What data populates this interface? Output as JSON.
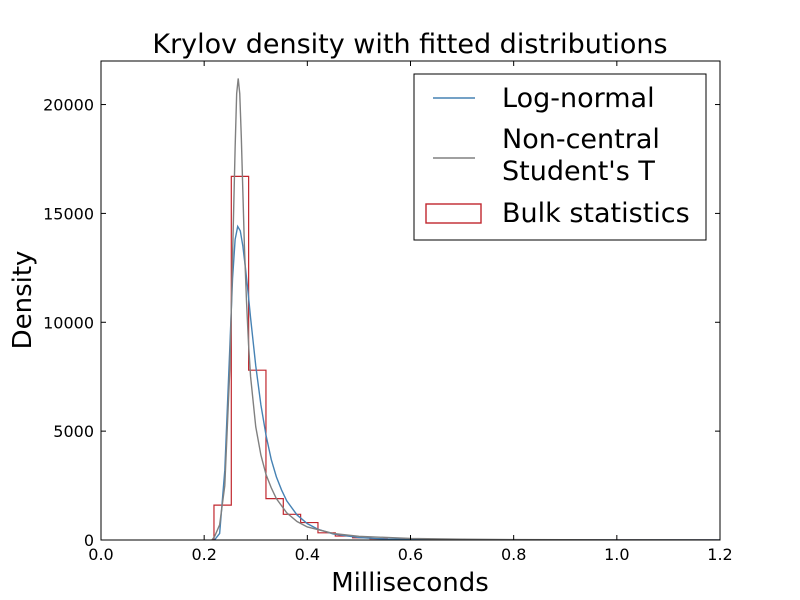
{
  "chart_data": {
    "type": "histogram",
    "title": "Krylov density with fitted distributions",
    "xlabel": "Milliseconds",
    "ylabel": "Density",
    "xlim": [
      0.0,
      1.2
    ],
    "ylim": [
      0,
      22000
    ],
    "x_ticks": [
      "0.0",
      "0.2",
      "0.4",
      "0.6",
      "0.8",
      "1.0",
      "1.2"
    ],
    "y_ticks": [
      "0",
      "5000",
      "10000",
      "15000",
      "20000"
    ],
    "grid": false,
    "legend_position": "top-right",
    "histogram": {
      "name": "Bulk statistics",
      "color": "#c0262d",
      "bin_edges": [
        0.219,
        0.2526,
        0.2862,
        0.3198,
        0.3534,
        0.387,
        0.4206,
        0.4542,
        0.4878,
        0.5214,
        0.555,
        0.5886,
        0.6222,
        0.6558,
        0.6894,
        0.723,
        0.7566,
        0.7902,
        0.8238,
        0.8574,
        0.891,
        0.9246,
        0.9582,
        0.9918,
        1.0254,
        1.059,
        1.0926,
        1.1262,
        1.1598,
        1.1934
      ],
      "densities": [
        1600,
        16700,
        7800,
        1900,
        1180,
        800,
        330,
        180,
        100,
        60,
        40,
        25,
        15,
        10,
        8,
        6,
        5,
        4,
        3,
        3,
        2,
        2,
        2,
        1,
        1,
        1,
        1,
        1,
        1
      ]
    },
    "series": [
      {
        "name": "Log-normal",
        "color": "#4682b4",
        "x": [
          0.22,
          0.23,
          0.24,
          0.25,
          0.255,
          0.26,
          0.265,
          0.27,
          0.275,
          0.28,
          0.285,
          0.29,
          0.3,
          0.31,
          0.32,
          0.33,
          0.34,
          0.35,
          0.36,
          0.38,
          0.4,
          0.42,
          0.45,
          0.5,
          0.55,
          0.6,
          0.7,
          0.8,
          1.0,
          1.2
        ],
        "y": [
          0,
          300,
          3200,
          9000,
          12000,
          13800,
          14400,
          14200,
          13500,
          12500,
          11400,
          10200,
          8000,
          6200,
          4800,
          3700,
          2900,
          2300,
          1800,
          1150,
          750,
          500,
          280,
          110,
          50,
          25,
          8,
          3,
          1,
          0
        ]
      },
      {
        "name": "Non-central\nStudent's T",
        "color": "#808080",
        "x": [
          0.215,
          0.22,
          0.23,
          0.24,
          0.25,
          0.255,
          0.26,
          0.263,
          0.266,
          0.269,
          0.272,
          0.275,
          0.278,
          0.282,
          0.286,
          0.29,
          0.3,
          0.31,
          0.32,
          0.33,
          0.34,
          0.36,
          0.38,
          0.4,
          0.45,
          0.5,
          0.6,
          0.7,
          0.8,
          1.0,
          1.2
        ],
        "y": [
          0,
          150,
          700,
          2500,
          8000,
          13000,
          18000,
          20500,
          21200,
          20500,
          18500,
          16000,
          13500,
          11000,
          9000,
          7500,
          5200,
          3900,
          3000,
          2400,
          1900,
          1250,
          850,
          600,
          300,
          170,
          70,
          35,
          20,
          8,
          4
        ]
      }
    ]
  }
}
